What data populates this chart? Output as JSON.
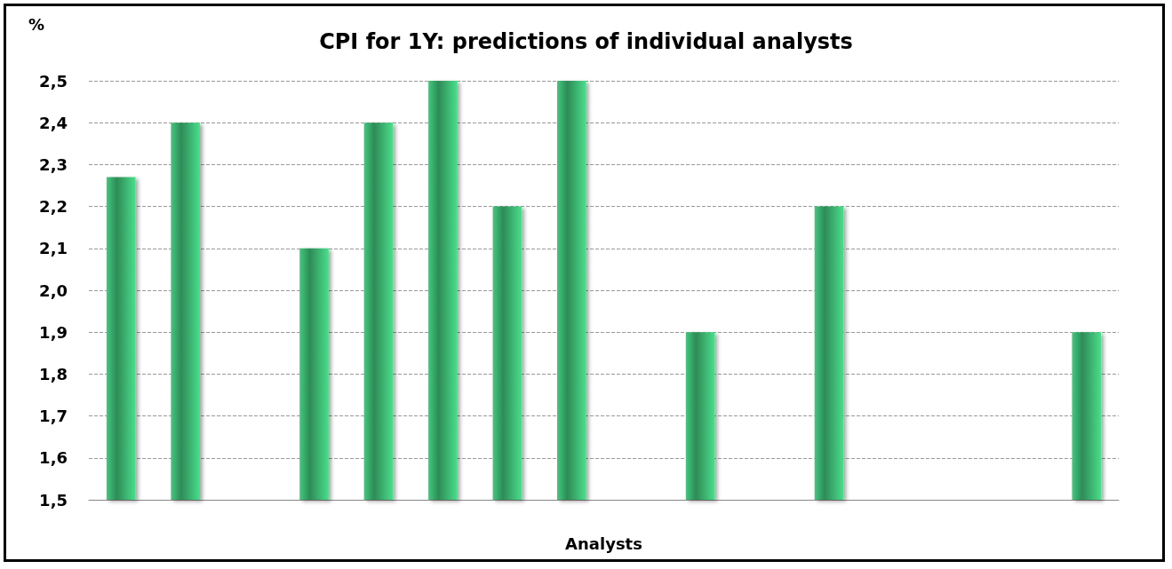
{
  "chart_data": {
    "type": "bar",
    "title": "CPI for 1Y: predictions of individual analysts",
    "xlabel": "Analysts",
    "ylabel": "%",
    "categories": [
      null,
      null,
      null,
      null,
      null,
      null,
      null,
      null,
      null,
      null,
      null,
      null,
      null,
      null,
      null,
      null
    ],
    "values": [
      2.27,
      2.4,
      1.5,
      2.1,
      2.4,
      2.5,
      2.2,
      2.5,
      1.5,
      1.9,
      1.5,
      2.2,
      1.5,
      1.5,
      1.5,
      1.9
    ],
    "color": "#2e8b57",
    "ylim": [
      1.5,
      2.5
    ],
    "yticks": [
      {
        "value": 1.5,
        "label": "1,5"
      },
      {
        "value": 1.6,
        "label": "1,6"
      },
      {
        "value": 1.7,
        "label": "1,7"
      },
      {
        "value": 1.8,
        "label": "1,8"
      },
      {
        "value": 1.9,
        "label": "1,9"
      },
      {
        "value": 2.0,
        "label": "2,0"
      },
      {
        "value": 2.1,
        "label": "2,1"
      },
      {
        "value": 2.2,
        "label": "2,2"
      },
      {
        "value": 2.3,
        "label": "2,3"
      },
      {
        "value": 2.4,
        "label": "2,4"
      },
      {
        "value": 2.5,
        "label": "2,5"
      }
    ],
    "grid": "y"
  }
}
